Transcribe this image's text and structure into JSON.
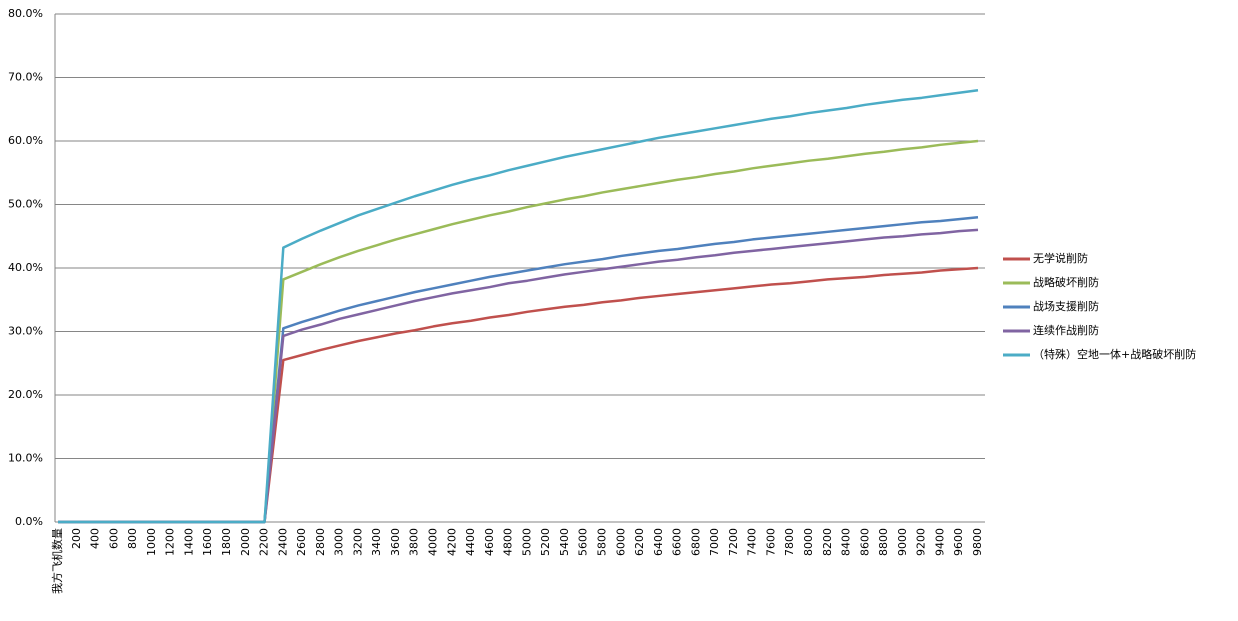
{
  "chart_data": {
    "type": "line",
    "categories": [
      "我方飞机数量",
      "200",
      "400",
      "600",
      "800",
      "1000",
      "1200",
      "1400",
      "1600",
      "1800",
      "2000",
      "2200",
      "2400",
      "2600",
      "2800",
      "3000",
      "3200",
      "3400",
      "3600",
      "3800",
      "4000",
      "4200",
      "4400",
      "4600",
      "4800",
      "5000",
      "5200",
      "5400",
      "5600",
      "5800",
      "6000",
      "6200",
      "6400",
      "6600",
      "6800",
      "7000",
      "7200",
      "7400",
      "7600",
      "7800",
      "8000",
      "8200",
      "8400",
      "8600",
      "8800",
      "9000",
      "9200",
      "9400",
      "9600",
      "9800"
    ],
    "series": [
      {
        "name": "无学说削防",
        "color": "#c0504d",
        "values": [
          0,
          0,
          0,
          0,
          0,
          0,
          0,
          0,
          0,
          0,
          0,
          0,
          25.5,
          26.3,
          27.1,
          27.8,
          28.5,
          29.1,
          29.7,
          30.2,
          30.8,
          31.3,
          31.7,
          32.2,
          32.6,
          33.1,
          33.5,
          33.9,
          34.2,
          34.6,
          34.9,
          35.3,
          35.6,
          35.9,
          36.2,
          36.5,
          36.8,
          37.1,
          37.4,
          37.6,
          37.9,
          38.2,
          38.4,
          38.6,
          38.9,
          39.1,
          39.3,
          39.6,
          39.8,
          40.0
        ]
      },
      {
        "name": "战略破坏削防",
        "color": "#9bbb59",
        "values": [
          0,
          0,
          0,
          0,
          0,
          0,
          0,
          0,
          0,
          0,
          0,
          0,
          38.2,
          39.4,
          40.6,
          41.7,
          42.7,
          43.6,
          44.5,
          45.3,
          46.1,
          46.9,
          47.6,
          48.3,
          48.9,
          49.6,
          50.2,
          50.8,
          51.3,
          51.9,
          52.4,
          52.9,
          53.4,
          53.9,
          54.3,
          54.8,
          55.2,
          55.7,
          56.1,
          56.5,
          56.9,
          57.2,
          57.6,
          58.0,
          58.3,
          58.7,
          59.0,
          59.4,
          59.7,
          60.0
        ]
      },
      {
        "name": "战场支援削防",
        "color": "#4f81bd",
        "values": [
          0,
          0,
          0,
          0,
          0,
          0,
          0,
          0,
          0,
          0,
          0,
          0,
          30.5,
          31.5,
          32.4,
          33.3,
          34.1,
          34.8,
          35.5,
          36.2,
          36.8,
          37.4,
          38.0,
          38.6,
          39.1,
          39.6,
          40.1,
          40.6,
          41.0,
          41.4,
          41.9,
          42.3,
          42.7,
          43.0,
          43.4,
          43.8,
          44.1,
          44.5,
          44.8,
          45.1,
          45.4,
          45.7,
          46.0,
          46.3,
          46.6,
          46.9,
          47.2,
          47.4,
          47.7,
          48.0
        ]
      },
      {
        "name": "连续作战削防",
        "color": "#8064a2",
        "values": [
          0,
          0,
          0,
          0,
          0,
          0,
          0,
          0,
          0,
          0,
          0,
          0,
          29.3,
          30.3,
          31.1,
          32.0,
          32.7,
          33.4,
          34.1,
          34.8,
          35.4,
          36.0,
          36.5,
          37.0,
          37.6,
          38.0,
          38.5,
          39.0,
          39.4,
          39.8,
          40.2,
          40.6,
          41.0,
          41.3,
          41.7,
          42.0,
          42.4,
          42.7,
          43.0,
          43.3,
          43.6,
          43.9,
          44.2,
          44.5,
          44.8,
          45.0,
          45.3,
          45.5,
          45.8,
          46.0
        ]
      },
      {
        "name": "（特殊）空地一体+战略破坏削防",
        "color": "#4bacc6",
        "values": [
          0,
          0,
          0,
          0,
          0,
          0,
          0,
          0,
          0,
          0,
          0,
          0,
          43.2,
          44.6,
          45.9,
          47.1,
          48.3,
          49.3,
          50.3,
          51.3,
          52.2,
          53.1,
          53.9,
          54.6,
          55.4,
          56.1,
          56.8,
          57.5,
          58.1,
          58.7,
          59.3,
          59.9,
          60.5,
          61.0,
          61.5,
          62.0,
          62.5,
          63.0,
          63.5,
          63.9,
          64.4,
          64.8,
          65.2,
          65.7,
          66.1,
          66.5,
          66.8,
          67.2,
          67.6,
          68.0
        ]
      }
    ],
    "ylim": [
      0,
      80
    ],
    "yticks": [
      {
        "value": 0,
        "label": "0.0%"
      },
      {
        "value": 10,
        "label": "10.0%"
      },
      {
        "value": 20,
        "label": "20.0%"
      },
      {
        "value": 30,
        "label": "30.0%"
      },
      {
        "value": 40,
        "label": "40.0%"
      },
      {
        "value": 50,
        "label": "50.0%"
      },
      {
        "value": 60,
        "label": "60.0%"
      },
      {
        "value": 70,
        "label": "70.0%"
      },
      {
        "value": 80,
        "label": "80.0%"
      }
    ],
    "grid": true,
    "legend": "right"
  }
}
